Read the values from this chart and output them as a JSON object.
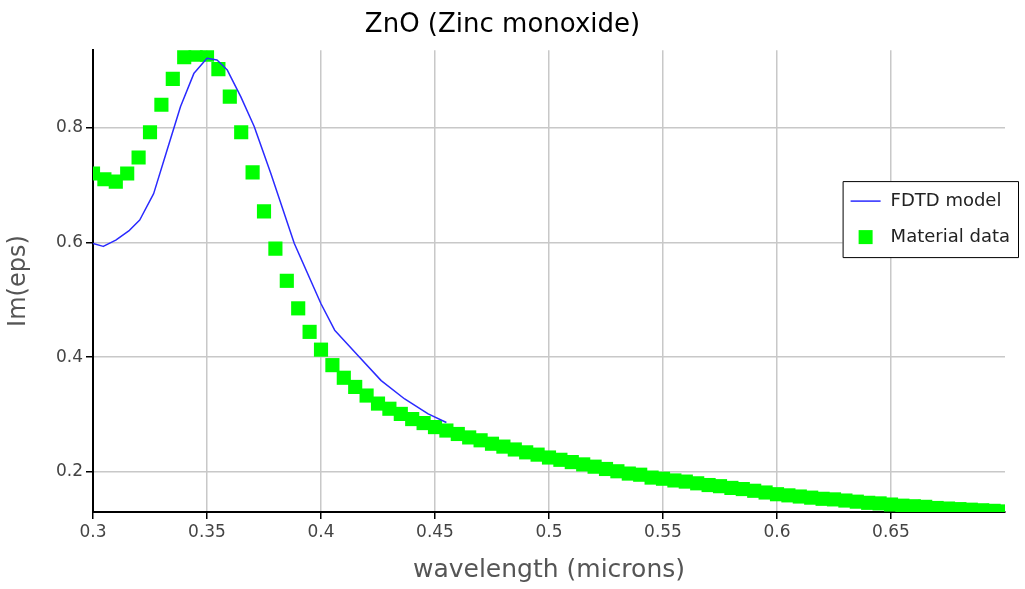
{
  "chart_data": {
    "type": "line",
    "title": "ZnO (Zinc monoxide)",
    "xlabel": "wavelength (microns)",
    "ylabel": "Im(eps)",
    "xlim": [
      0.3,
      0.7
    ],
    "xticks": [
      0.3,
      0.35,
      0.4,
      0.45,
      0.5,
      0.55,
      0.6,
      0.65
    ],
    "ylim": [
      0.13,
      0.935
    ],
    "yticks": [
      0.2,
      0.4,
      0.6,
      0.8
    ],
    "grid": true,
    "legend": "right",
    "series": [
      {
        "name": "FDTD model",
        "color": "#2a2aff",
        "marker": "none",
        "line_style": "solid",
        "x": [
          0.3,
          0.3045,
          0.31,
          0.316,
          0.3205,
          0.3266,
          0.3325,
          0.3384,
          0.3443,
          0.35,
          0.3544,
          0.3588,
          0.3648,
          0.3707,
          0.378,
          0.3883,
          0.4,
          0.406,
          0.4162,
          0.4264,
          0.4367,
          0.447,
          0.455
        ],
        "values": [
          0.598,
          0.593,
          0.604,
          0.621,
          0.639,
          0.685,
          0.761,
          0.837,
          0.895,
          0.921,
          0.918,
          0.901,
          0.854,
          0.802,
          0.72,
          0.598,
          0.493,
          0.447,
          0.403,
          0.359,
          0.327,
          0.301,
          0.286
        ]
      },
      {
        "name": "Material data",
        "type": "scatter",
        "color": "#00ff00",
        "marker": "square",
        "x": [
          0.3,
          0.305,
          0.31,
          0.315,
          0.32,
          0.325,
          0.33,
          0.335,
          0.34,
          0.345,
          0.35,
          0.355,
          0.36,
          0.365,
          0.37,
          0.375,
          0.38,
          0.385,
          0.39,
          0.395,
          0.4,
          0.405,
          0.41,
          0.415,
          0.42,
          0.425,
          0.43,
          0.435,
          0.44,
          0.445,
          0.45,
          0.455,
          0.46,
          0.465,
          0.47,
          0.475,
          0.48,
          0.485,
          0.49,
          0.495,
          0.5,
          0.505,
          0.51,
          0.515,
          0.52,
          0.525,
          0.53,
          0.535,
          0.54,
          0.545,
          0.55,
          0.555,
          0.56,
          0.565,
          0.57,
          0.575,
          0.58,
          0.585,
          0.59,
          0.595,
          0.6,
          0.605,
          0.61,
          0.615,
          0.62,
          0.625,
          0.63,
          0.635,
          0.64,
          0.645,
          0.65,
          0.655,
          0.66,
          0.665,
          0.67,
          0.675,
          0.68,
          0.685,
          0.69,
          0.695,
          0.7
        ],
        "values": [
          0.72,
          0.71,
          0.706,
          0.72,
          0.748,
          0.792,
          0.84,
          0.885,
          0.923,
          0.927,
          0.927,
          0.902,
          0.854,
          0.792,
          0.722,
          0.654,
          0.589,
          0.533,
          0.485,
          0.444,
          0.413,
          0.386,
          0.364,
          0.348,
          0.333,
          0.319,
          0.31,
          0.301,
          0.292,
          0.285,
          0.278,
          0.272,
          0.266,
          0.26,
          0.255,
          0.249,
          0.244,
          0.239,
          0.234,
          0.23,
          0.225,
          0.221,
          0.217,
          0.213,
          0.209,
          0.205,
          0.201,
          0.197,
          0.195,
          0.19,
          0.188,
          0.185,
          0.183,
          0.18,
          0.177,
          0.175,
          0.172,
          0.17,
          0.167,
          0.164,
          0.161,
          0.159,
          0.157,
          0.155,
          0.153,
          0.152,
          0.15,
          0.148,
          0.146,
          0.145,
          0.143,
          0.141,
          0.14,
          0.139,
          0.137,
          0.136,
          0.135,
          0.134,
          0.133,
          0.132,
          0.131
        ]
      }
    ]
  }
}
